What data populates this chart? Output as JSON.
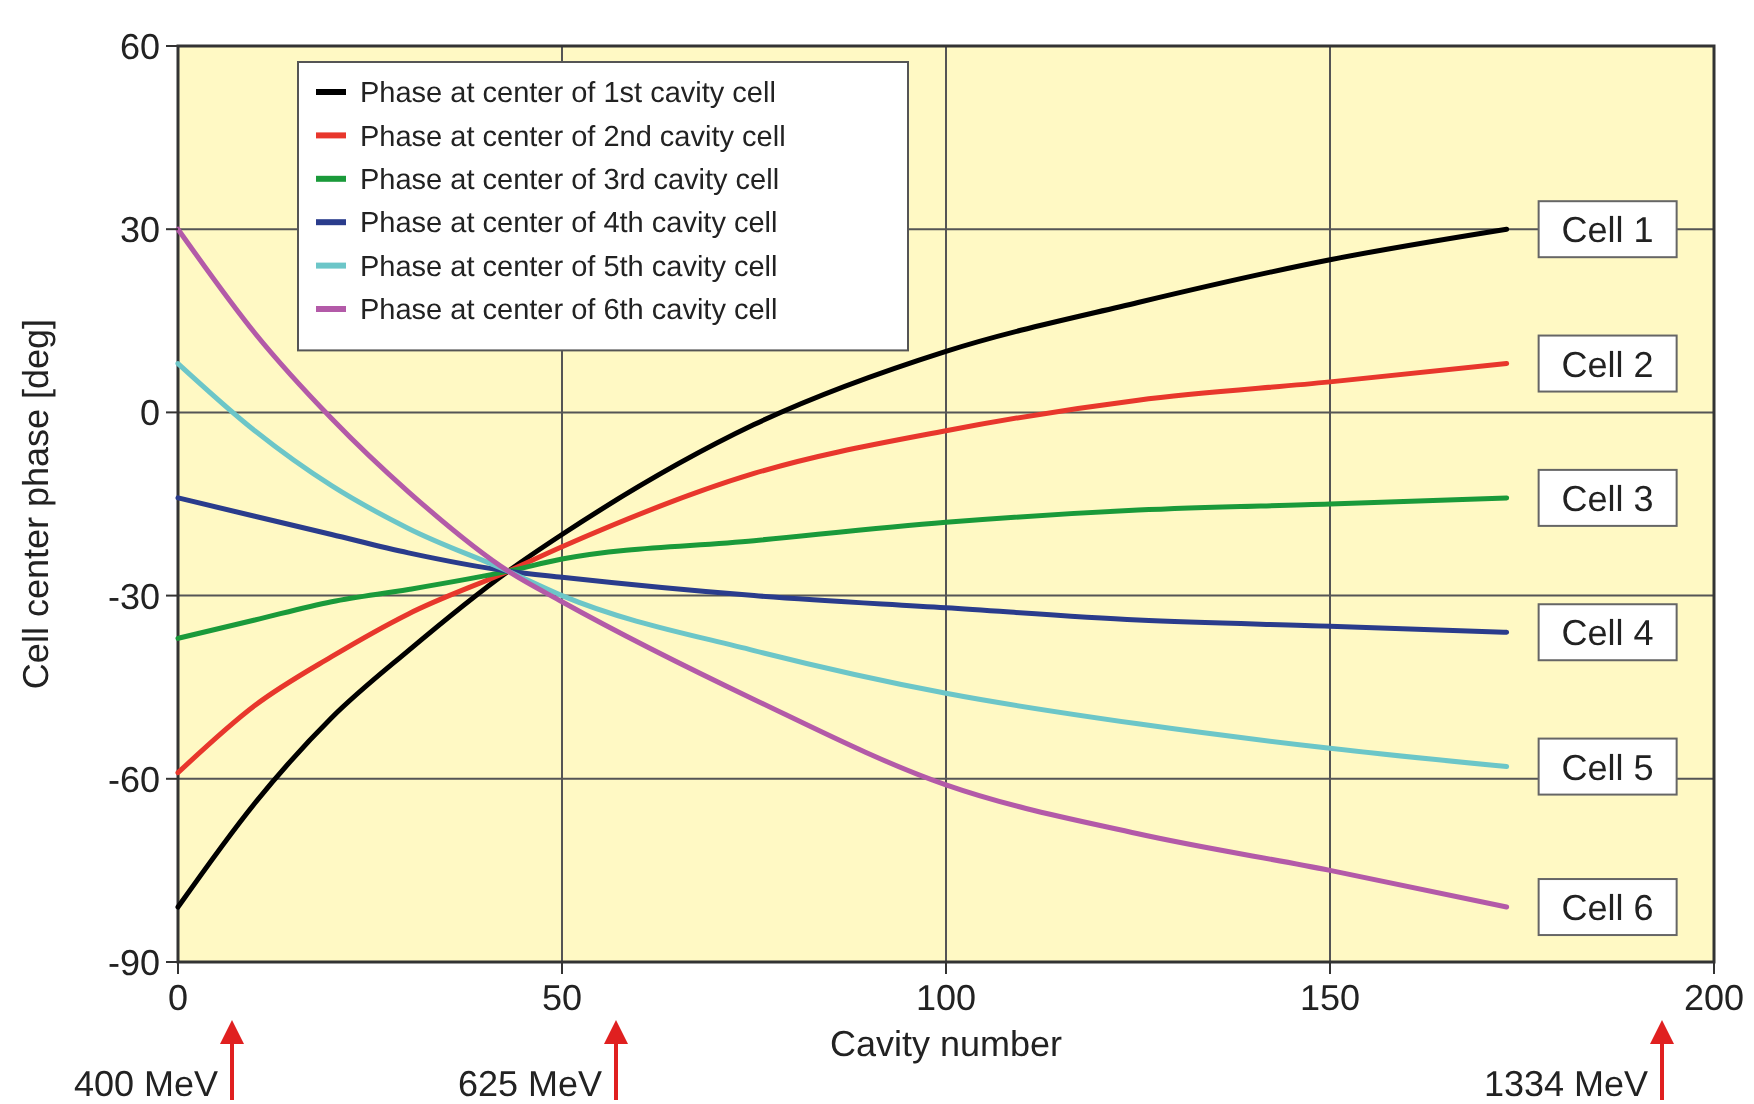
{
  "chart_data": {
    "type": "line",
    "xlabel": "Cavity number",
    "ylabel": "Cell center phase [deg]",
    "x": [
      0,
      10,
      20,
      30,
      43,
      50,
      75,
      100,
      125,
      150,
      173
    ],
    "xlim": [
      0,
      200
    ],
    "xticks": [
      0,
      50,
      100,
      150,
      200
    ],
    "ylim": [
      -90,
      60
    ],
    "yticks": [
      -90,
      -60,
      -30,
      0,
      30,
      60
    ],
    "grid": true,
    "legend": "top left",
    "line_style": "solid",
    "marker": "none",
    "series": [
      {
        "name": "Phase at center of 1st cavity cell",
        "color": "#000000",
        "values": [
          -81,
          -64,
          -50,
          -39,
          -26,
          -20,
          -2,
          10,
          18,
          25,
          30
        ]
      },
      {
        "name": "Phase at center of 2nd cavity cell",
        "color": "#e8372c",
        "values": [
          -59,
          -48,
          -40,
          -33,
          -26,
          -22,
          -10,
          -3,
          2,
          5,
          8
        ]
      },
      {
        "name": "Phase at center of 3rd cavity cell",
        "color": "#1a9a3a",
        "values": [
          -37,
          -34,
          -31,
          -29,
          -26,
          -24,
          -21,
          -18,
          -16,
          -15,
          -14
        ]
      },
      {
        "name": "Phase at center of 4th cavity cell",
        "color": "#2a3c8c",
        "values": [
          -14,
          -17,
          -20,
          -23,
          -26,
          -27,
          -30,
          -32,
          -34,
          -35,
          -36
        ]
      },
      {
        "name": "Phase at center of 5th cavity cell",
        "color": "#6cc6c8",
        "values": [
          8,
          -3,
          -12,
          -19,
          -26,
          -30,
          -39,
          -46,
          -51,
          -55,
          -58
        ]
      },
      {
        "name": "Phase at center of 6th cavity cell",
        "color": "#b35aa8",
        "values": [
          30,
          13,
          -1,
          -13,
          -26,
          -31,
          -47,
          -61,
          -69,
          -75,
          -81
        ]
      }
    ],
    "annotations": [
      "Cell 1",
      "Cell 2",
      "Cell 3",
      "Cell 4",
      "Cell 5",
      "Cell 6",
      "400 MeV",
      "625 MeV",
      "1334 MeV"
    ]
  }
}
